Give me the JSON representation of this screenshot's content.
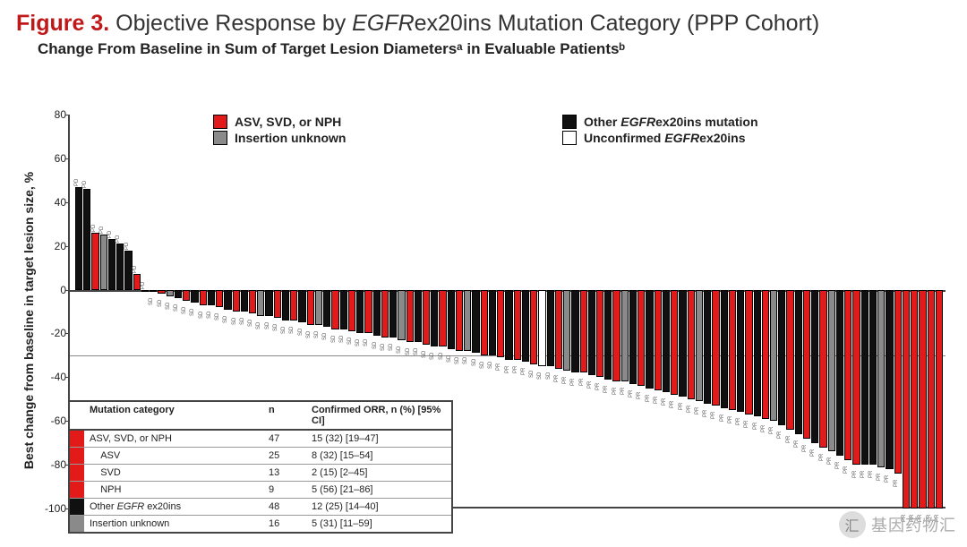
{
  "figure": {
    "label": "Figure 3.",
    "label_color": "#c01818",
    "title_prefix": "Objective Response by ",
    "title_gene": "EGFR",
    "title_suffix": "ex20ins Mutation Category (PPP Cohort)",
    "subtitle": "Change From Baseline in Sum of Target Lesion Diametersᵃ in Evaluable Patientsᵇ"
  },
  "colors": {
    "asv_svd_nph": "#e21a1a",
    "other": "#101010",
    "insertion_unknown": "#8a8a8a",
    "unconfirmed": "#ffffff",
    "axis": "#444444",
    "grid": "#888888",
    "background": "#ffffff"
  },
  "y_axis": {
    "title": "Best change from baseline in target lesion size, %",
    "min": -100,
    "max": 80,
    "step": 20,
    "ticks": [
      80,
      60,
      40,
      20,
      0,
      -20,
      -40,
      -60,
      -80,
      -100
    ],
    "reference_line": -30
  },
  "legend": [
    {
      "label": "ASV, SVD, or NPH",
      "color_key": "asv_svd_nph"
    },
    {
      "label_prefix": "Other ",
      "label_gene": "EGFR",
      "label_suffix": "ex20ins mutation",
      "color_key": "other"
    },
    {
      "label": "Insertion unknown",
      "color_key": "insertion_unknown"
    },
    {
      "label_prefix": "Unconfirmed ",
      "label_gene": "EGFR",
      "label_suffix": "ex20ins",
      "color_key": "unconfirmed"
    }
  ],
  "bars": [
    {
      "v": 47,
      "c": "other",
      "r": "PD"
    },
    {
      "v": 46,
      "c": "other",
      "r": "PD"
    },
    {
      "v": 26,
      "c": "asv_svd_nph",
      "r": "PD"
    },
    {
      "v": 25,
      "c": "insertion_unknown",
      "r": "PD"
    },
    {
      "v": 23,
      "c": "other",
      "r": "PD"
    },
    {
      "v": 21,
      "c": "other",
      "r": "PD"
    },
    {
      "v": 18,
      "c": "other",
      "r": "PD"
    },
    {
      "v": 7,
      "c": "asv_svd_nph",
      "r": "PD"
    },
    {
      "v": 0,
      "c": "other",
      "r": "PD"
    },
    {
      "v": -1,
      "c": "other",
      "r": "SD"
    },
    {
      "v": -2,
      "c": "asv_svd_nph",
      "r": "SD"
    },
    {
      "v": -3,
      "c": "insertion_unknown",
      "r": "SD"
    },
    {
      "v": -4,
      "c": "other",
      "r": "SD"
    },
    {
      "v": -5,
      "c": "asv_svd_nph",
      "r": "SD"
    },
    {
      "v": -6,
      "c": "other",
      "r": "SD"
    },
    {
      "v": -7,
      "c": "asv_svd_nph",
      "r": "SD"
    },
    {
      "v": -7,
      "c": "other",
      "r": "SD"
    },
    {
      "v": -8,
      "c": "asv_svd_nph",
      "r": "SD"
    },
    {
      "v": -9,
      "c": "other",
      "r": "SD"
    },
    {
      "v": -10,
      "c": "asv_svd_nph",
      "r": "SD"
    },
    {
      "v": -10,
      "c": "other",
      "r": "SD"
    },
    {
      "v": -11,
      "c": "asv_svd_nph",
      "r": "SD"
    },
    {
      "v": -12,
      "c": "insertion_unknown",
      "r": "SD"
    },
    {
      "v": -12,
      "c": "other",
      "r": "SD"
    },
    {
      "v": -13,
      "c": "asv_svd_nph",
      "r": "SD"
    },
    {
      "v": -14,
      "c": "other",
      "r": "SD"
    },
    {
      "v": -14,
      "c": "asv_svd_nph",
      "r": "SD"
    },
    {
      "v": -15,
      "c": "other",
      "r": "SD"
    },
    {
      "v": -16,
      "c": "asv_svd_nph",
      "r": "SD"
    },
    {
      "v": -16,
      "c": "insertion_unknown",
      "r": "SD"
    },
    {
      "v": -17,
      "c": "other",
      "r": "SD"
    },
    {
      "v": -18,
      "c": "asv_svd_nph",
      "r": "SD"
    },
    {
      "v": -18,
      "c": "other",
      "r": "SD"
    },
    {
      "v": -19,
      "c": "asv_svd_nph",
      "r": "SD"
    },
    {
      "v": -20,
      "c": "other",
      "r": "SD"
    },
    {
      "v": -20,
      "c": "asv_svd_nph",
      "r": "SD"
    },
    {
      "v": -21,
      "c": "other",
      "r": "SD"
    },
    {
      "v": -22,
      "c": "asv_svd_nph",
      "r": "SD"
    },
    {
      "v": -22,
      "c": "other",
      "r": "SD"
    },
    {
      "v": -23,
      "c": "insertion_unknown",
      "r": "SD"
    },
    {
      "v": -24,
      "c": "asv_svd_nph",
      "r": "SD"
    },
    {
      "v": -24,
      "c": "other",
      "r": "SD"
    },
    {
      "v": -25,
      "c": "asv_svd_nph",
      "r": "SD"
    },
    {
      "v": -26,
      "c": "other",
      "r": "SD"
    },
    {
      "v": -26,
      "c": "asv_svd_nph",
      "r": "SD"
    },
    {
      "v": -27,
      "c": "other",
      "r": "SD"
    },
    {
      "v": -28,
      "c": "asv_svd_nph",
      "r": "SD"
    },
    {
      "v": -28,
      "c": "insertion_unknown",
      "r": "SD"
    },
    {
      "v": -29,
      "c": "other",
      "r": "SD"
    },
    {
      "v": -30,
      "c": "asv_svd_nph",
      "r": "SD"
    },
    {
      "v": -30,
      "c": "other",
      "r": "SD"
    },
    {
      "v": -31,
      "c": "asv_svd_nph",
      "r": "PR"
    },
    {
      "v": -32,
      "c": "other",
      "r": "PR"
    },
    {
      "v": -32,
      "c": "asv_svd_nph",
      "r": "PR"
    },
    {
      "v": -33,
      "c": "other",
      "r": "PR"
    },
    {
      "v": -34,
      "c": "asv_svd_nph",
      "r": "SD"
    },
    {
      "v": -35,
      "c": "unconfirmed",
      "r": "SD"
    },
    {
      "v": -35,
      "c": "other",
      "r": "SD"
    },
    {
      "v": -36,
      "c": "asv_svd_nph",
      "r": "PR"
    },
    {
      "v": -37,
      "c": "insertion_unknown",
      "r": "PR"
    },
    {
      "v": -38,
      "c": "other",
      "r": "PR"
    },
    {
      "v": -38,
      "c": "asv_svd_nph",
      "r": "PR"
    },
    {
      "v": -39,
      "c": "other",
      "r": "PR"
    },
    {
      "v": -40,
      "c": "asv_svd_nph",
      "r": "PR"
    },
    {
      "v": -41,
      "c": "other",
      "r": "PR"
    },
    {
      "v": -42,
      "c": "asv_svd_nph",
      "r": "PR"
    },
    {
      "v": -42,
      "c": "insertion_unknown",
      "r": "PR"
    },
    {
      "v": -43,
      "c": "other",
      "r": "PR"
    },
    {
      "v": -44,
      "c": "asv_svd_nph",
      "r": "PR"
    },
    {
      "v": -45,
      "c": "other",
      "r": "PR"
    },
    {
      "v": -46,
      "c": "asv_svd_nph",
      "r": "PR"
    },
    {
      "v": -47,
      "c": "other",
      "r": "PR"
    },
    {
      "v": -48,
      "c": "asv_svd_nph",
      "r": "PR"
    },
    {
      "v": -49,
      "c": "other",
      "r": "PR"
    },
    {
      "v": -50,
      "c": "asv_svd_nph",
      "r": "PR"
    },
    {
      "v": -51,
      "c": "insertion_unknown",
      "r": "PR"
    },
    {
      "v": -52,
      "c": "other",
      "r": "PR"
    },
    {
      "v": -53,
      "c": "asv_svd_nph",
      "r": "PR"
    },
    {
      "v": -54,
      "c": "other",
      "r": "PR"
    },
    {
      "v": -55,
      "c": "asv_svd_nph",
      "r": "PR"
    },
    {
      "v": -56,
      "c": "other",
      "r": "PR"
    },
    {
      "v": -57,
      "c": "asv_svd_nph",
      "r": "PR"
    },
    {
      "v": -58,
      "c": "other",
      "r": "PR"
    },
    {
      "v": -59,
      "c": "asv_svd_nph",
      "r": "PR"
    },
    {
      "v": -60,
      "c": "insertion_unknown",
      "r": "PR"
    },
    {
      "v": -62,
      "c": "other",
      "r": "PR"
    },
    {
      "v": -64,
      "c": "asv_svd_nph",
      "r": "PR"
    },
    {
      "v": -66,
      "c": "other",
      "r": "PR"
    },
    {
      "v": -68,
      "c": "asv_svd_nph",
      "r": "PR"
    },
    {
      "v": -70,
      "c": "other",
      "r": "PR"
    },
    {
      "v": -72,
      "c": "asv_svd_nph",
      "r": "PR"
    },
    {
      "v": -74,
      "c": "insertion_unknown",
      "r": "PR"
    },
    {
      "v": -76,
      "c": "other",
      "r": "PR"
    },
    {
      "v": -78,
      "c": "asv_svd_nph",
      "r": "PR"
    },
    {
      "v": -80,
      "c": "asv_svd_nph",
      "r": "PR"
    },
    {
      "v": -80,
      "c": "other",
      "r": "PR"
    },
    {
      "v": -80,
      "c": "other",
      "r": "PR"
    },
    {
      "v": -81,
      "c": "insertion_unknown",
      "r": "PR"
    },
    {
      "v": -82,
      "c": "other",
      "r": "PR"
    },
    {
      "v": -84,
      "c": "asv_svd_nph",
      "r": "PR"
    },
    {
      "v": -100,
      "c": "asv_svd_nph",
      "r": "PR"
    },
    {
      "v": -100,
      "c": "asv_svd_nph",
      "r": "PR"
    },
    {
      "v": -100,
      "c": "asv_svd_nph",
      "r": "PR"
    },
    {
      "v": -100,
      "c": "asv_svd_nph",
      "r": "PR"
    },
    {
      "v": -100,
      "c": "asv_svd_nph",
      "r": "PR"
    }
  ],
  "orr_table": {
    "headers": [
      "Mutation category",
      "n",
      "Confirmed ORR, n (%) [95% CI]"
    ],
    "rows": [
      {
        "swatch": "asv_svd_nph",
        "cat": "ASV, SVD, or NPH",
        "n": "47",
        "orr": "15 (32) [19–47]"
      },
      {
        "swatch": "asv_svd_nph",
        "cat": "  ASV",
        "n": "25",
        "orr": "8 (32) [15–54]"
      },
      {
        "swatch": "asv_svd_nph",
        "cat": "  SVD",
        "n": "13",
        "orr": "2 (15) [2–45]"
      },
      {
        "swatch": "asv_svd_nph",
        "cat": "  NPH",
        "n": "9",
        "orr": "5 (56) [21–86]"
      },
      {
        "swatch": "other",
        "cat_prefix": "Other ",
        "cat_gene": "EGFR",
        "cat_suffix": " ex20ins",
        "n": "48",
        "orr": "12 (25) [14–40]"
      },
      {
        "swatch": "insertion_unknown",
        "cat": "Insertion unknown",
        "n": "16",
        "orr": "5 (31) [11–59]"
      }
    ]
  },
  "watermark": "基因药物汇"
}
